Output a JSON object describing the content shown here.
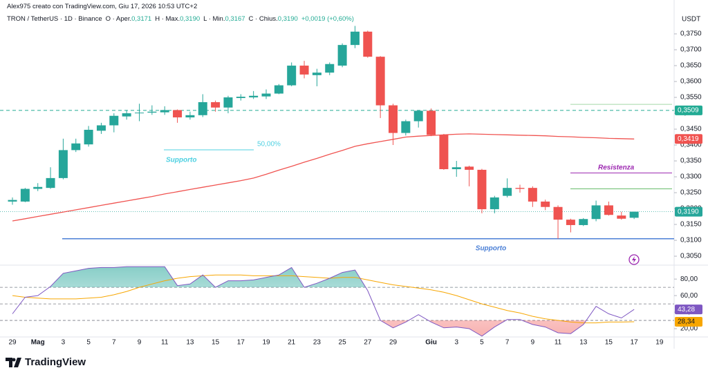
{
  "author": "Alex975 creato con TradingView.com, Giu 17, 2026 10:53 UTC+2",
  "brand": "TradingView",
  "chart_data": {
    "type": "candlestick",
    "symbol": "TRON / TetherUS · 1D · Binance",
    "ohlc_header": [
      {
        "key": "O · Aper.",
        "value": "0,3171"
      },
      {
        "key": "H · Max.",
        "value": "0,3190"
      },
      {
        "key": "L · Min.",
        "value": "0,3167"
      },
      {
        "key": "C · Chius.",
        "value": "0,3190"
      },
      {
        "key": "",
        "value": "+0,0019 (+0,60%)"
      }
    ],
    "currency": "USDT",
    "categories": [
      "29",
      null,
      "Mag",
      null,
      "3",
      null,
      "5",
      null,
      "7",
      null,
      "9",
      null,
      "11",
      null,
      "13",
      null,
      "15",
      null,
      "17",
      null,
      "19",
      null,
      "21",
      null,
      "23",
      null,
      "25",
      null,
      "27",
      null,
      "29",
      null,
      null,
      "Giu",
      null,
      "3",
      null,
      "5",
      null,
      "7",
      null,
      "9",
      null,
      "11",
      null,
      "13",
      null,
      "15",
      null,
      "17",
      null,
      "19"
    ],
    "open": [
      0.3222,
      0.3222,
      0.3262,
      0.3265,
      0.3296,
      0.3384,
      0.3402,
      0.3445,
      0.3462,
      0.349,
      0.35,
      0.3502,
      0.3503,
      0.351,
      0.3487,
      0.3494,
      0.3535,
      0.3518,
      0.3548,
      0.355,
      0.3553,
      0.3562,
      0.3588,
      0.365,
      0.362,
      0.3628,
      0.365,
      0.3715,
      0.3757,
      0.3678,
      0.3525,
      0.3438,
      0.3475,
      0.3508,
      0.3432,
      0.3324,
      0.3332,
      0.3322,
      0.3198,
      0.324,
      0.3265,
      0.3265,
      0.3222,
      0.3205,
      0.3165,
      0.3148,
      0.3167,
      0.321,
      0.3178,
      0.3171,
      null,
      null
    ],
    "high": [
      0.3235,
      0.3265,
      0.328,
      0.333,
      0.342,
      0.342,
      0.346,
      0.347,
      0.35,
      0.351,
      0.353,
      0.3525,
      0.3522,
      0.3512,
      0.3505,
      0.356,
      0.354,
      0.3555,
      0.356,
      0.357,
      0.3575,
      0.3592,
      0.366,
      0.3665,
      0.364,
      0.366,
      0.372,
      0.3775,
      0.376,
      0.368,
      0.353,
      0.348,
      0.351,
      0.3515,
      0.3435,
      0.335,
      0.3335,
      0.3325,
      0.324,
      0.3295,
      0.3275,
      0.327,
      0.3228,
      0.321,
      0.3168,
      0.317,
      0.3225,
      0.3222,
      0.319,
      0.319,
      null,
      null
    ],
    "low": [
      0.3212,
      0.322,
      0.3255,
      0.3262,
      0.3292,
      0.3378,
      0.3395,
      0.3435,
      0.344,
      0.348,
      0.3475,
      0.3495,
      0.3495,
      0.347,
      0.348,
      0.3488,
      0.3505,
      0.35,
      0.354,
      0.3545,
      0.3545,
      0.356,
      0.3585,
      0.361,
      0.3585,
      0.362,
      0.3645,
      0.3705,
      0.3675,
      0.3485,
      0.34,
      0.343,
      0.3455,
      0.3428,
      0.3322,
      0.33,
      0.327,
      0.3185,
      0.3185,
      0.3235,
      0.325,
      0.3205,
      0.3195,
      0.3105,
      0.3125,
      0.3145,
      0.316,
      0.3178,
      0.3165,
      0.3167,
      null,
      null
    ],
    "close": [
      0.3227,
      0.3262,
      0.3268,
      0.3296,
      0.3384,
      0.3405,
      0.3448,
      0.3462,
      0.3492,
      0.35,
      0.3502,
      0.3505,
      0.351,
      0.3487,
      0.3494,
      0.3535,
      0.3518,
      0.355,
      0.3552,
      0.3555,
      0.3562,
      0.3588,
      0.365,
      0.3622,
      0.3628,
      0.3655,
      0.3715,
      0.3757,
      0.3678,
      0.3525,
      0.3438,
      0.3475,
      0.3508,
      0.3432,
      0.3324,
      0.333,
      0.3322,
      0.3198,
      0.3235,
      0.3265,
      0.3262,
      0.3222,
      0.3205,
      0.3165,
      0.3148,
      0.3167,
      0.321,
      0.318,
      0.3168,
      0.319,
      null,
      null
    ],
    "up_color": "#26a69a",
    "down_color": "#ef5350",
    "price_label": "0,3190",
    "ma": {
      "color": "#f05350",
      "label": "0,3419",
      "values": [
        0.3161,
        0.3168,
        0.3175,
        0.3182,
        0.3189,
        0.3196,
        0.3203,
        0.321,
        0.3217,
        0.3224,
        0.3231,
        0.3238,
        0.3246,
        0.3253,
        0.326,
        0.3267,
        0.3274,
        0.3281,
        0.3288,
        0.3296,
        0.3308,
        0.3321,
        0.3333,
        0.3346,
        0.3358,
        0.3371,
        0.3383,
        0.3396,
        0.3404,
        0.3411,
        0.3418,
        0.3425,
        0.3428,
        0.343,
        0.3432,
        0.3434,
        0.3435,
        0.3434,
        0.3433,
        0.3432,
        0.3431,
        0.343,
        0.3429,
        0.3427,
        0.3426,
        0.3424,
        0.3423,
        0.3421,
        0.342,
        0.3419,
        null,
        null
      ]
    },
    "ylim": [
      0.3024,
      0.3824
    ],
    "yticks": [
      {
        "value": 0.305,
        "label": "0,3050"
      },
      {
        "value": 0.31,
        "label": "0,3100"
      },
      {
        "value": 0.315,
        "label": "0,3150"
      },
      {
        "value": 0.32,
        "label": "0,3200"
      },
      {
        "value": 0.325,
        "label": "0,3250"
      },
      {
        "value": 0.33,
        "label": "0,3300"
      },
      {
        "value": 0.335,
        "label": "0,3350"
      },
      {
        "value": 0.34,
        "label": "0,3400"
      },
      {
        "value": 0.345,
        "label": "0,3450"
      },
      {
        "value": 0.35,
        "label": "0,3500"
      },
      {
        "value": 0.355,
        "label": "0,3550"
      },
      {
        "value": 0.36,
        "label": "0,3600"
      },
      {
        "value": 0.365,
        "label": "0,3650"
      },
      {
        "value": 0.37,
        "label": "0,3700"
      },
      {
        "value": 0.375,
        "label": "0,3750"
      }
    ],
    "levels": [
      {
        "value": 0.3509,
        "label": "0,3509",
        "color": "#22ab94"
      },
      {
        "value": 0.3105,
        "text": "Supporto",
        "color": "#4a7fd6"
      },
      {
        "value": 0.3385,
        "text": "Supporto",
        "note": "50,00%",
        "color": "#4dd0e1"
      },
      {
        "value": 0.3312,
        "text": "Resistenza",
        "color": "#9c27b0"
      },
      {
        "value": 0.3262,
        "color": "#66bb6a"
      },
      {
        "value": 0.3528,
        "color": "#a5d6a7"
      }
    ],
    "rsi": {
      "color": "#7e57c2",
      "ma_color": "#f7a600",
      "value_label": "43,28",
      "ma_label": "28,34",
      "values": [
        38,
        58,
        60,
        71,
        87,
        90,
        93,
        94,
        94,
        95,
        95,
        95,
        95,
        72,
        74,
        85,
        70,
        78,
        78,
        79,
        82,
        85,
        94,
        70,
        75,
        81,
        88,
        91,
        66,
        30,
        21,
        28,
        37,
        28,
        21,
        22,
        20,
        11,
        22,
        31,
        31,
        25,
        22,
        15,
        14,
        25,
        47,
        38,
        33,
        43.28,
        null,
        null
      ],
      "ma_values": [
        60,
        58,
        57,
        56,
        56,
        56,
        57,
        58,
        61,
        65,
        70,
        74,
        78,
        81,
        83,
        84,
        85,
        85,
        85,
        84,
        84,
        84,
        84,
        83,
        82,
        81,
        82,
        82,
        79,
        76,
        73,
        71,
        69,
        67,
        64,
        60,
        55,
        50,
        46,
        42,
        39,
        35,
        32,
        30,
        28,
        27,
        27,
        28,
        28,
        28.34,
        null,
        null
      ],
      "ylim": [
        10,
        96
      ],
      "yticks": [
        {
          "value": 80,
          "label": "80,00"
        },
        {
          "value": 60,
          "label": "60,00"
        },
        {
          "value": 40,
          "label": "40,00"
        },
        {
          "value": 20,
          "label": "20,00"
        }
      ],
      "levels": [
        70,
        50,
        30
      ]
    }
  }
}
